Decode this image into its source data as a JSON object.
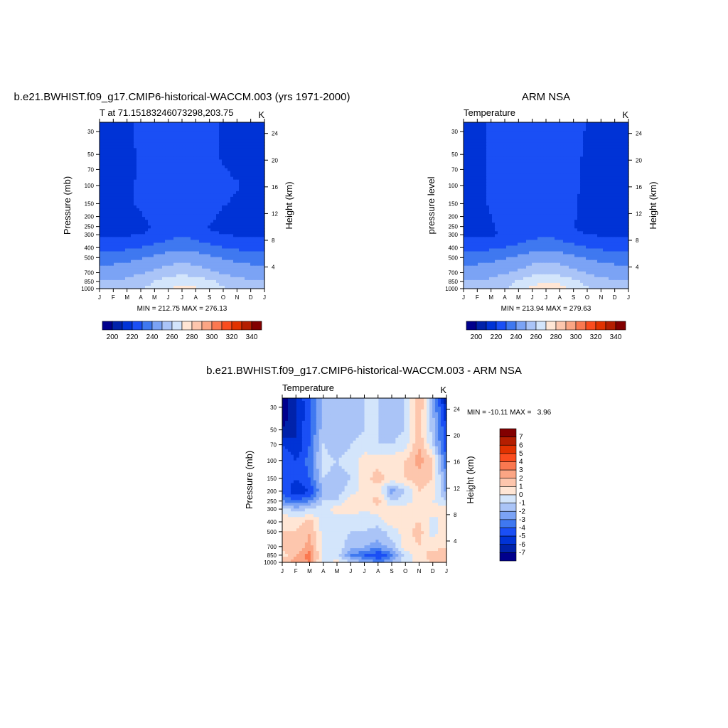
{
  "palette": [
    "#00008c",
    "#0022aa",
    "#0033d6",
    "#1a4ff5",
    "#3f78f0",
    "#7ba3f5",
    "#aac4f7",
    "#d3e5fb",
    "#ffe6d5",
    "#fdc6ad",
    "#fba584",
    "#fa7850",
    "#fa4c1e",
    "#e13200",
    "#b41e00",
    "#820000"
  ],
  "chart_data": [
    {
      "id": "plot_left",
      "type": "heatmap",
      "title": "b.e21.BWHIST.f09_g17.CMIP6-historical-WACCM.003 (yrs 1971-2000)",
      "subtitle": "T at 71.15183246073298,203.75",
      "units": "K",
      "ylabel": "Pressure (mb)",
      "ylabel_right": "Height (km)",
      "stats": "MIN = 212.75 MAX = 276.13",
      "x_ticks": [
        "J",
        "F",
        "M",
        "A",
        "M",
        "J",
        "J",
        "A",
        "S",
        "O",
        "N",
        "D",
        "J"
      ],
      "y_ticks": [
        30,
        50,
        70,
        100,
        150,
        200,
        250,
        300,
        400,
        500,
        700,
        850,
        1000
      ],
      "y_right_ticks": [
        24,
        20,
        16,
        12,
        8,
        4
      ],
      "ylim": [
        24.4,
        1000
      ],
      "levels": [
        200,
        210,
        220,
        230,
        240,
        250,
        260,
        270,
        280,
        290,
        300,
        310,
        320,
        330,
        340
      ],
      "colorbar_labels": [
        "200",
        "220",
        "240",
        "260",
        "280",
        "300",
        "320",
        "340"
      ],
      "pressure": [
        25,
        50,
        70,
        100,
        150,
        200,
        250,
        300,
        400,
        500,
        700,
        850,
        1000
      ],
      "values": [
        [
          217,
          217,
          218,
          222,
          224,
          225,
          225,
          225,
          224,
          218,
          217,
          217,
          217
        ],
        [
          216,
          216,
          217,
          222,
          225,
          226,
          226,
          226,
          224,
          218,
          217,
          216,
          216
        ],
        [
          216,
          216,
          217,
          221,
          225,
          226,
          226,
          226,
          225,
          221,
          218,
          216,
          216
        ],
        [
          216,
          216,
          218,
          222,
          225,
          226,
          226,
          226,
          225,
          222,
          221,
          217,
          216
        ],
        [
          216,
          216,
          218,
          222,
          225,
          226,
          226,
          226,
          225,
          221,
          218,
          216,
          216
        ],
        [
          216,
          216,
          217,
          219,
          223,
          225,
          226,
          225,
          223,
          217,
          216,
          216,
          216
        ],
        [
          217,
          217,
          217,
          218,
          221,
          224,
          226,
          224,
          219,
          217,
          217,
          217,
          217
        ],
        [
          218,
          218,
          219,
          220,
          222,
          226,
          229,
          226,
          222,
          220,
          219,
          218,
          218
        ],
        [
          227,
          227,
          228,
          230,
          233,
          236,
          238,
          236,
          233,
          230,
          228,
          227,
          227
        ],
        [
          236,
          236,
          237,
          239,
          242,
          245,
          247,
          245,
          242,
          239,
          237,
          236,
          236
        ],
        [
          245,
          245,
          246,
          249,
          252,
          255,
          257,
          255,
          252,
          249,
          246,
          245,
          245
        ],
        [
          251,
          251,
          252,
          256,
          260,
          265,
          268,
          266,
          262,
          257,
          253,
          251,
          251
        ],
        [
          254,
          254,
          255,
          259,
          264,
          270,
          273,
          271,
          267,
          261,
          256,
          254,
          254
        ]
      ]
    },
    {
      "id": "plot_right",
      "type": "heatmap",
      "title": "ARM NSA",
      "subtitle": "Temperature",
      "units": "K",
      "ylabel": "pressure level",
      "ylabel_right": "Height (km)",
      "stats": "MIN = 213.94 MAX = 279.63",
      "x_ticks": [
        "J",
        "F",
        "M",
        "A",
        "M",
        "J",
        "J",
        "A",
        "S",
        "O",
        "N",
        "D",
        "J"
      ],
      "y_ticks": [
        30,
        50,
        70,
        100,
        150,
        200,
        250,
        300,
        400,
        500,
        700,
        850,
        1000
      ],
      "y_right_ticks": [
        24,
        20,
        16,
        12,
        8,
        4
      ],
      "ylim": [
        24.4,
        1000
      ],
      "levels": [
        200,
        210,
        220,
        230,
        240,
        250,
        260,
        270,
        280,
        290,
        300,
        310,
        320,
        330,
        340
      ],
      "colorbar_labels": [
        "200",
        "220",
        "240",
        "260",
        "280",
        "300",
        "320",
        "340"
      ],
      "pressure": [
        25,
        50,
        70,
        100,
        150,
        200,
        250,
        300,
        400,
        500,
        700,
        850,
        1000
      ],
      "values": [
        [
          217,
          218,
          221,
          224,
          226,
          228,
          230,
          228,
          225,
          219,
          218,
          217,
          217
        ],
        [
          216,
          217,
          221,
          224,
          226,
          227,
          227,
          226,
          223,
          218,
          217,
          216,
          216
        ],
        [
          216,
          217,
          221,
          224,
          226,
          227,
          227,
          226,
          222,
          218,
          217,
          216,
          216
        ],
        [
          216,
          217,
          221,
          224,
          226,
          227,
          227,
          225,
          222,
          218,
          217,
          216,
          216
        ],
        [
          216,
          217,
          221,
          224,
          226,
          227,
          227,
          225,
          221,
          217,
          216,
          216,
          216
        ],
        [
          216,
          216,
          220,
          224,
          226,
          227,
          227,
          225,
          221,
          217,
          216,
          216,
          216
        ],
        [
          217,
          217,
          219,
          223,
          225,
          227,
          227,
          225,
          220,
          217,
          217,
          217,
          217
        ],
        [
          218,
          218,
          219,
          221,
          223,
          226,
          229,
          226,
          222,
          220,
          219,
          218,
          218
        ],
        [
          227,
          227,
          228,
          230,
          233,
          236,
          238,
          236,
          233,
          230,
          228,
          227,
          227
        ],
        [
          236,
          236,
          237,
          239,
          242,
          245,
          247,
          245,
          242,
          239,
          237,
          236,
          236
        ],
        [
          245,
          245,
          246,
          249,
          252,
          256,
          258,
          256,
          253,
          249,
          246,
          245,
          245
        ],
        [
          251,
          251,
          252,
          256,
          261,
          267,
          270,
          268,
          263,
          257,
          253,
          251,
          251
        ],
        [
          254,
          254,
          255,
          259,
          265,
          272,
          275,
          273,
          268,
          261,
          256,
          254,
          254
        ]
      ]
    },
    {
      "id": "plot_diff",
      "type": "heatmap",
      "title": "b.e21.BWHIST.f09_g17.CMIP6-historical-WACCM.003 - ARM NSA",
      "subtitle": "Temperature",
      "units": "K",
      "ylabel": "Pressure (mb)",
      "ylabel_right": "Height (km)",
      "stats": "MIN = -10.11 MAX =   3.96",
      "x_ticks": [
        "J",
        "F",
        "M",
        "A",
        "M",
        "J",
        "J",
        "A",
        "S",
        "O",
        "N",
        "D",
        "J"
      ],
      "y_ticks": [
        30,
        50,
        70,
        100,
        150,
        200,
        250,
        300,
        400,
        500,
        700,
        850,
        1000
      ],
      "y_right_ticks": [
        24,
        20,
        16,
        12,
        8,
        4
      ],
      "ylim": [
        24.4,
        1000
      ],
      "levels": [
        -7,
        -6,
        -5,
        -4,
        -3,
        -2,
        -1,
        0,
        1,
        2,
        3,
        4,
        5,
        6,
        7
      ],
      "colorbar_labels": [
        "7",
        "6",
        "5",
        "4",
        "3",
        "2",
        "1",
        "0",
        "-1",
        "-2",
        "-3",
        "-4",
        "-5",
        "-6",
        "-7"
      ],
      "pressure": [
        25,
        30,
        50,
        70,
        100,
        150,
        200,
        250,
        300,
        400,
        500,
        700,
        850,
        1000
      ],
      "values": [
        [
          -8,
          -6,
          -4,
          -1.5,
          -2,
          -1.5,
          -1,
          -1,
          -1.5,
          -1,
          2,
          -2,
          -7
        ],
        [
          -8,
          -6,
          -4.5,
          -1.5,
          -2,
          -1.5,
          -1,
          -1,
          -1.5,
          -1,
          2,
          -2,
          -6
        ],
        [
          -7,
          -6,
          -4,
          -1.5,
          -2,
          -1.5,
          -1,
          -1,
          -1.5,
          -1,
          1.5,
          -1.5,
          -5
        ],
        [
          -5,
          -6,
          -4,
          -1,
          -2,
          -1,
          -0.5,
          -1,
          -1,
          -0.5,
          2,
          -1,
          -5
        ],
        [
          -4,
          -5,
          -3.5,
          -0.5,
          -1,
          -0.5,
          0.5,
          0.5,
          0.5,
          1,
          2.5,
          1,
          -4
        ],
        [
          -4,
          -5,
          -4,
          -1,
          -1.5,
          -1,
          0.5,
          1.5,
          0.5,
          1,
          1.5,
          1,
          -3
        ],
        [
          -4,
          -6,
          -5,
          -2,
          -1.5,
          -0.5,
          0.5,
          0.5,
          -2.5,
          -1,
          1,
          0.5,
          -2.5
        ],
        [
          -3,
          -4,
          -3,
          -1,
          -1,
          0.5,
          0.5,
          1.5,
          -1,
          -0.5,
          0.5,
          0,
          -1
        ],
        [
          -0.5,
          -1.5,
          -1,
          -0.5,
          0.5,
          0.5,
          0,
          0.5,
          0.5,
          0.5,
          0.5,
          0.5,
          0.5
        ],
        [
          1,
          0.5,
          1.5,
          -0.5,
          -0.5,
          -0.5,
          -0.5,
          -0.5,
          0.5,
          0.5,
          1,
          -0.5,
          0.5
        ],
        [
          1,
          1,
          2,
          -0.5,
          -0.5,
          -1,
          -1,
          -1.5,
          -0.5,
          0.5,
          1.5,
          -0.5,
          1
        ],
        [
          1.5,
          1,
          2.5,
          -0.5,
          -0.5,
          -1.5,
          -2,
          -2.5,
          -1.5,
          0.5,
          1,
          0.5,
          1
        ],
        [
          0.5,
          2,
          3.5,
          -0.5,
          -0.5,
          -3,
          -4,
          -5,
          -3.5,
          -0.5,
          0.5,
          1.5,
          1.5
        ],
        [
          1.5,
          2.5,
          3,
          -0.5,
          0.5,
          -1,
          -2,
          -3,
          -2,
          -0.5,
          0.5,
          1,
          1
        ]
      ]
    }
  ]
}
